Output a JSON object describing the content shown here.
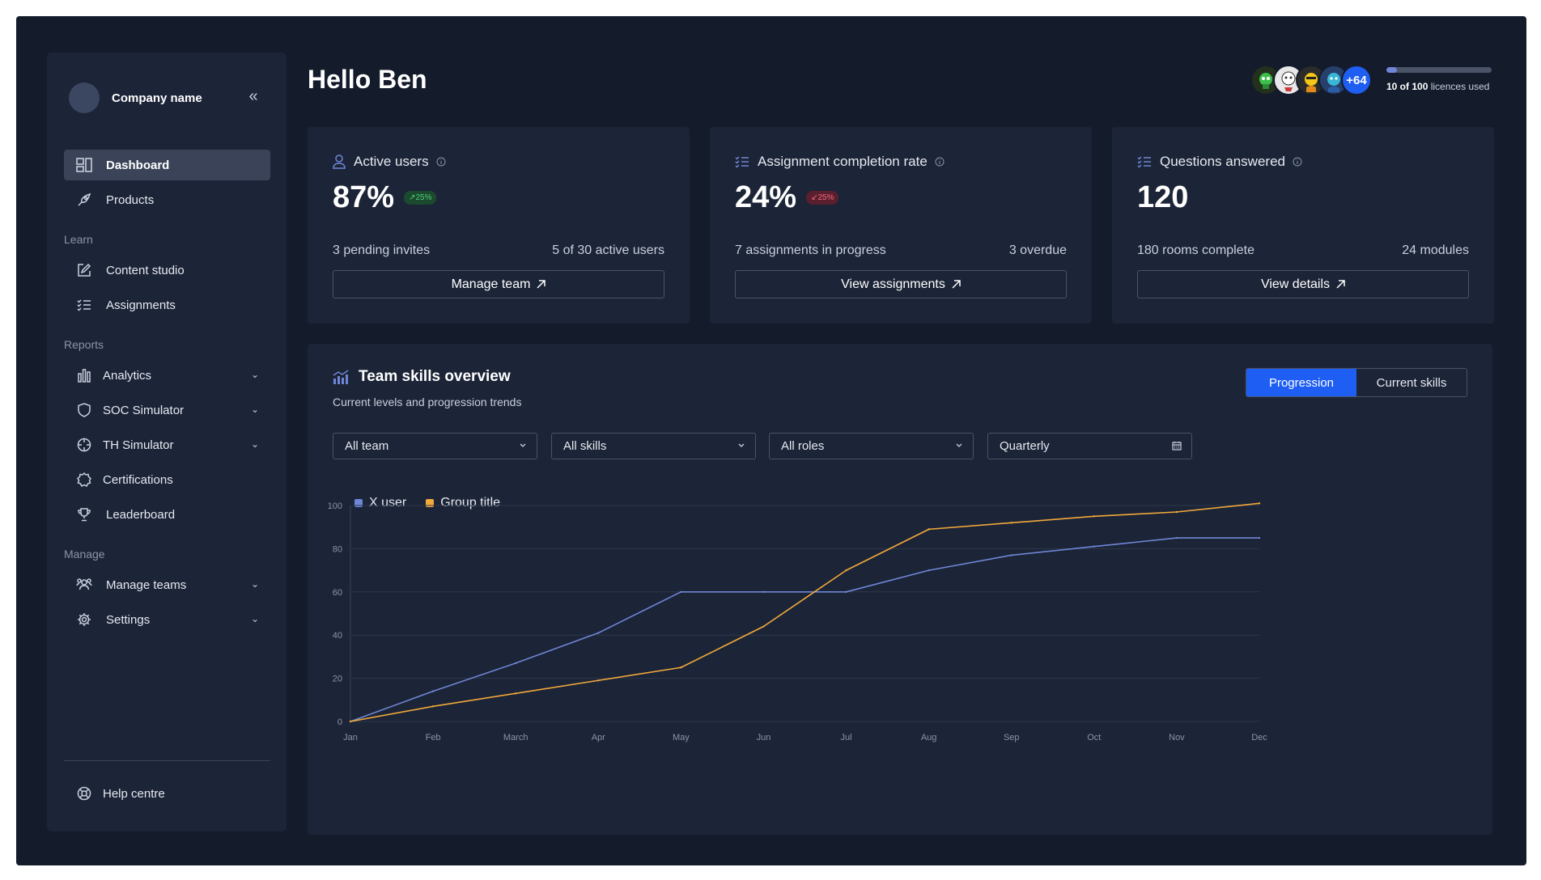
{
  "sidebar": {
    "company_name": "Company name",
    "items": [
      {
        "label": "Dashboard",
        "icon": "dashboard-icon",
        "active": true
      },
      {
        "label": "Products",
        "icon": "rocket-icon"
      }
    ],
    "sections": [
      {
        "label": "Learn",
        "items": [
          {
            "label": "Content studio",
            "icon": "edit-icon"
          },
          {
            "label": "Assignments",
            "icon": "checklist-icon"
          }
        ]
      },
      {
        "label": "Reports",
        "items": [
          {
            "label": "Analytics",
            "icon": "bar-chart-icon",
            "expandable": true
          },
          {
            "label": "SOC Simulator",
            "icon": "shield-icon",
            "expandable": true
          },
          {
            "label": "TH Simulator",
            "icon": "crosshair-icon",
            "expandable": true
          },
          {
            "label": "Certifications",
            "icon": "badge-icon"
          },
          {
            "label": "Leaderboard",
            "icon": "trophy-icon"
          }
        ]
      },
      {
        "label": "Manage",
        "items": [
          {
            "label": "Manage teams",
            "icon": "users-icon",
            "expandable": true
          },
          {
            "label": "Settings",
            "icon": "gear-icon",
            "expandable": true
          }
        ]
      }
    ],
    "footer": {
      "label": "Help centre",
      "icon": "lifebuoy-icon"
    }
  },
  "header": {
    "greeting": "Hello Ben",
    "avatar_extra": "+64",
    "licences_used": 10,
    "licences_total": 100,
    "licences_count": "10 of 100",
    "licences_suffix": " licences used"
  },
  "cards": [
    {
      "title": "Active users",
      "value": "87%",
      "badge": "↗25%",
      "trend": "up",
      "left_text": "3 pending invites",
      "right_text": "5 of 30 active users",
      "button": "Manage team"
    },
    {
      "title": "Assignment completion rate",
      "value": "24%",
      "badge": "↙25%",
      "trend": "down",
      "left_text": "7 assignments in progress",
      "right_text": "3 overdue",
      "button": "View assignments"
    },
    {
      "title": "Questions answered",
      "value": "120",
      "left_text": "180 rooms complete",
      "right_text": "24 modules",
      "button": "View details"
    }
  ],
  "panel": {
    "title": "Team skills overview",
    "subtitle": "Current levels and progression trends",
    "toggle": [
      "Progression",
      "Current skills"
    ],
    "filters": {
      "team": "All team",
      "skills": "All skills",
      "roles": "All roles",
      "period": "Quarterly"
    }
  },
  "colors": {
    "accent": "#1f5ef2",
    "series_x_user": "#6f86d6",
    "series_group": "#f2a93b"
  },
  "chart_data": {
    "type": "line",
    "x": [
      "Jan",
      "Feb",
      "March",
      "Apr",
      "May",
      "Jun",
      "Jul",
      "Aug",
      "Sep",
      "Oct",
      "Nov",
      "Dec"
    ],
    "ylim": [
      0,
      100
    ],
    "yticks": [
      0,
      20,
      40,
      60,
      80,
      100
    ],
    "grid": true,
    "legend": "top-left",
    "series": [
      {
        "name": "X user",
        "color": "#6f86d6",
        "values": [
          0,
          14,
          27,
          41,
          60,
          60,
          60,
          70,
          77,
          81,
          85,
          85
        ]
      },
      {
        "name": "Group title",
        "color": "#f2a93b",
        "values": [
          0,
          7,
          13,
          19,
          25,
          44,
          70,
          89,
          92,
          95,
          97,
          101
        ]
      }
    ]
  }
}
